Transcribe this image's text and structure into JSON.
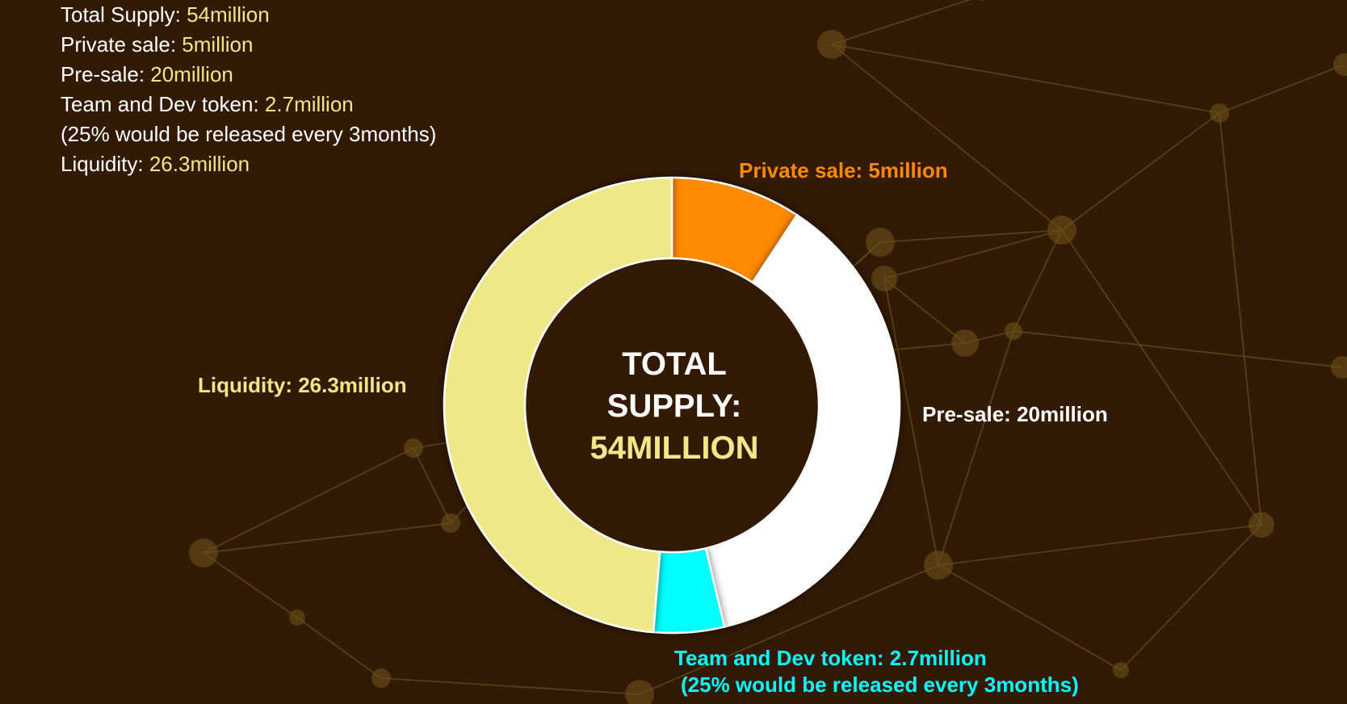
{
  "colors": {
    "background": "#321a04",
    "network": "#6b521c",
    "accent_yellow": "#eee889",
    "private_sale": "#ff8a00",
    "pre_sale": "#ffffff",
    "team_dev": "#00ffff",
    "liquidity": "#eee889"
  },
  "info": {
    "rows": [
      {
        "label": "Total Supply: ",
        "value": "54million"
      },
      {
        "label": "Private sale: ",
        "value": "5million"
      },
      {
        "label": "Pre-sale: ",
        "value": "20million"
      },
      {
        "label": "Team and Dev token: ",
        "value": "2.7million"
      }
    ],
    "note": "(25% would be released every 3months)",
    "liquidity": {
      "label": "Liquidity: ",
      "value": "26.3million"
    }
  },
  "center": {
    "line1": "TOTAL",
    "line2": "SUPPLY:",
    "line3": "54MILLION"
  },
  "chart_data": {
    "type": "pie",
    "variant": "donut",
    "total": 54,
    "unit": "million",
    "slices": [
      {
        "name": "Private sale",
        "value": 5,
        "color": "#ff8a00",
        "label": "Private sale: 5million"
      },
      {
        "name": "Pre-sale",
        "value": 20,
        "color": "#ffffff",
        "label": "Pre-sale: 20million"
      },
      {
        "name": "Team and Dev token",
        "value": 2.7,
        "color": "#00ffff",
        "label": "Team and Dev token: 2.7million",
        "label2": "(25% would be released every 3months)"
      },
      {
        "name": "Liquidity",
        "value": 26.3,
        "color": "#eee889",
        "label": "Liquidity: 26.3million"
      }
    ],
    "legend": "none"
  }
}
